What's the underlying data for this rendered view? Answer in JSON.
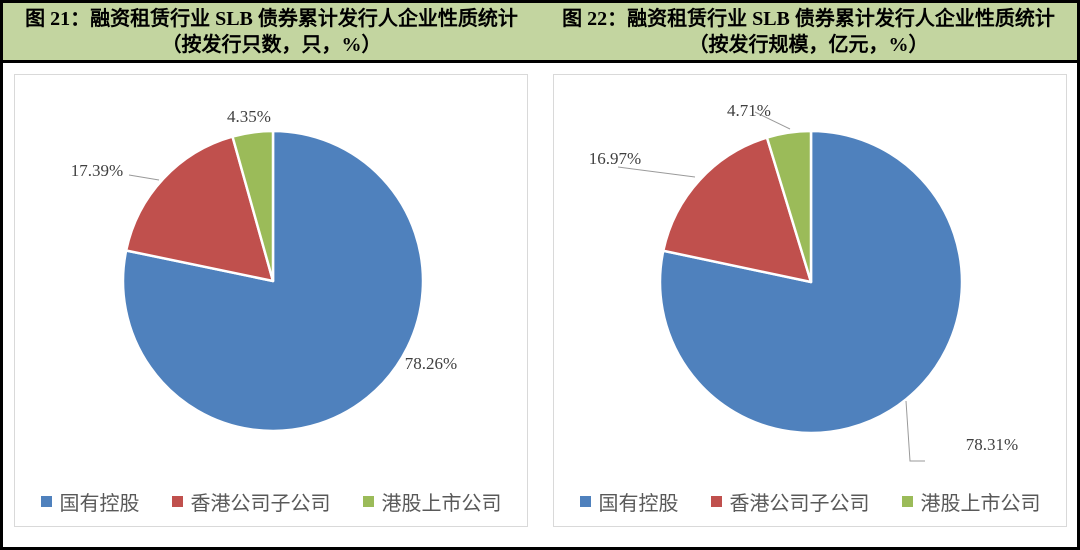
{
  "figure": {
    "left_title": "图 21：融资租赁行业 SLB 债券累计发行人企业性质统计（按发行只数，只，%）",
    "right_title": "图 22：融资租赁行业 SLB 债券累计发行人企业性质统计（按发行规模，亿元，%）",
    "header_bg": "#c3d5a0"
  },
  "chart_data": [
    {
      "type": "pie",
      "title": "图 21：融资租赁行业 SLB 债券累计发行人企业性质统计（按发行只数，只，%）",
      "unit": "只, %",
      "categories": [
        "国有控股",
        "香港公司子公司",
        "港股上市公司"
      ],
      "values": [
        78.26,
        17.39,
        4.35
      ],
      "labels": [
        "78.26%",
        "17.39%",
        "4.35%"
      ],
      "colors": [
        "#4f81bd",
        "#c0504d",
        "#9bbb59"
      ],
      "start_angle": "top",
      "direction": "clockwise",
      "legend_position": "bottom"
    },
    {
      "type": "pie",
      "title": "图 22：融资租赁行业 SLB 债券累计发行人企业性质统计（按发行规模，亿元，%）",
      "unit": "亿元, %",
      "categories": [
        "国有控股",
        "香港公司子公司",
        "港股上市公司"
      ],
      "values": [
        78.31,
        16.97,
        4.71
      ],
      "labels": [
        "78.31%",
        "16.97%",
        "4.71%"
      ],
      "colors": [
        "#4f81bd",
        "#c0504d",
        "#9bbb59"
      ],
      "start_angle": "top",
      "direction": "clockwise",
      "legend_position": "bottom"
    }
  ]
}
